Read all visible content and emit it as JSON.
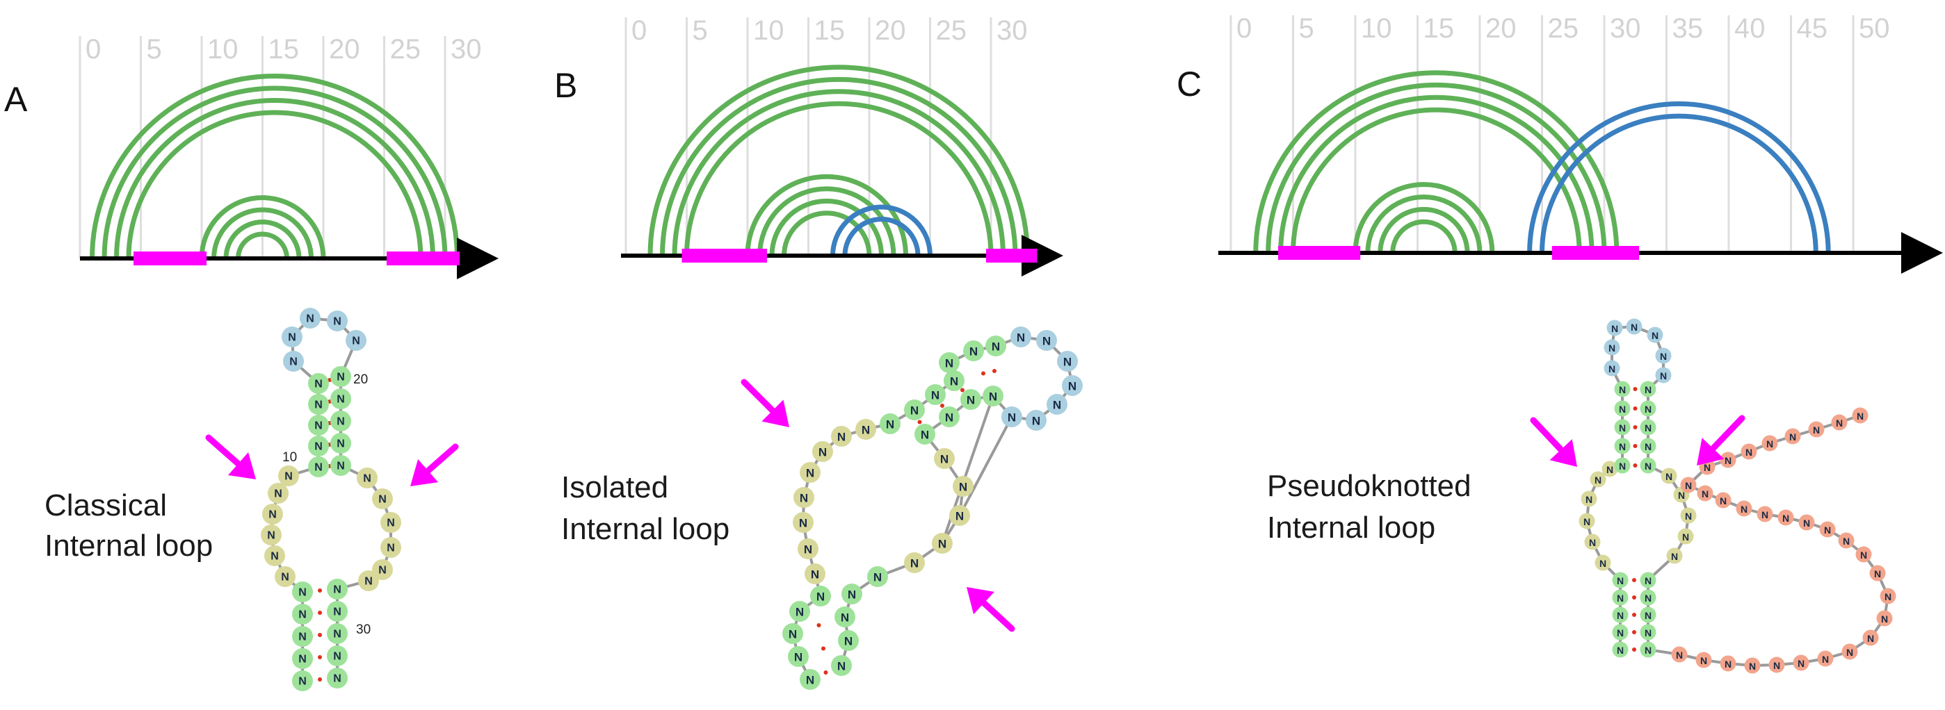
{
  "panels": [
    {
      "id": "A",
      "letter": "A",
      "caption_lines": [
        "Classical",
        "Internal loop"
      ],
      "tick_labels": [
        "0",
        "5",
        "10",
        "15",
        "20",
        "25",
        "30"
      ],
      "arc_colors": {
        "stem": "#5fb157",
        "other": "#3a7fc0"
      },
      "nodes_label": "N",
      "numbers": [
        "20",
        "10",
        "30"
      ]
    },
    {
      "id": "B",
      "letter": "B",
      "caption_lines": [
        "Isolated",
        "Internal loop"
      ],
      "tick_labels": [
        "0",
        "5",
        "10",
        "15",
        "20",
        "25",
        "30"
      ],
      "nodes_label": "N"
    },
    {
      "id": "C",
      "letter": "C",
      "caption_lines": [
        "Pseudoknotted",
        "Internal loop"
      ],
      "tick_labels": [
        "0",
        "5",
        "10",
        "15",
        "20",
        "25",
        "30",
        "35",
        "40",
        "45",
        "50"
      ],
      "nodes_label": "N"
    }
  ],
  "colors": {
    "stem_arc": "#5fb157",
    "pk_arc": "#3a7fc0",
    "loop_highlight": "#ff00ff",
    "arrow": "#ff00ff",
    "node_green": "#9ee29a",
    "node_yellow": "#d8d89a",
    "node_blue": "#a9cfe0",
    "node_orange": "#f2a58c",
    "base_pair": "#e0301e",
    "backbone": "#9a9a9a"
  }
}
